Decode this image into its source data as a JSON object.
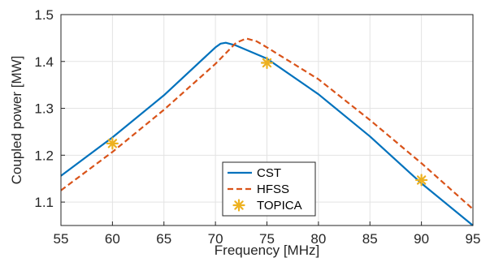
{
  "chart_data": {
    "type": "line",
    "xlabel": "Frequency [MHz]",
    "ylabel": "Coupled power [MW]",
    "xlim": [
      55,
      95
    ],
    "ylim": [
      1.05,
      1.5
    ],
    "xticks": [
      55,
      60,
      65,
      70,
      75,
      80,
      85,
      90,
      95
    ],
    "yticks": [
      1.1,
      1.2,
      1.3,
      1.4,
      1.5
    ],
    "ytick_labels": [
      "1.1",
      "1.2",
      "1.3",
      "1.4",
      "1.5"
    ],
    "grid": true,
    "legend": "bottom-center",
    "series": [
      {
        "name": "CST",
        "style": "solid",
        "color": "#0072BD",
        "points": [
          [
            55,
            1.156
          ],
          [
            60,
            1.238
          ],
          [
            65,
            1.328
          ],
          [
            70,
            1.43
          ],
          [
            70.5,
            1.438
          ],
          [
            71,
            1.44
          ],
          [
            72,
            1.434
          ],
          [
            75,
            1.406
          ],
          [
            80,
            1.33
          ],
          [
            85,
            1.24
          ],
          [
            90,
            1.14
          ],
          [
            95,
            1.05
          ]
        ]
      },
      {
        "name": "HFSS",
        "style": "dashed",
        "color": "#D95319",
        "points": [
          [
            55,
            1.125
          ],
          [
            60,
            1.207
          ],
          [
            65,
            1.297
          ],
          [
            70,
            1.395
          ],
          [
            72,
            1.44
          ],
          [
            73,
            1.449
          ],
          [
            74,
            1.443
          ],
          [
            75,
            1.43
          ],
          [
            80,
            1.362
          ],
          [
            85,
            1.275
          ],
          [
            90,
            1.183
          ],
          [
            95,
            1.085
          ]
        ]
      },
      {
        "name": "TOPICA",
        "style": "markers",
        "color": "#EDB120",
        "points": [
          [
            60,
            1.225
          ],
          [
            75,
            1.397
          ],
          [
            90,
            1.147
          ]
        ]
      }
    ]
  }
}
